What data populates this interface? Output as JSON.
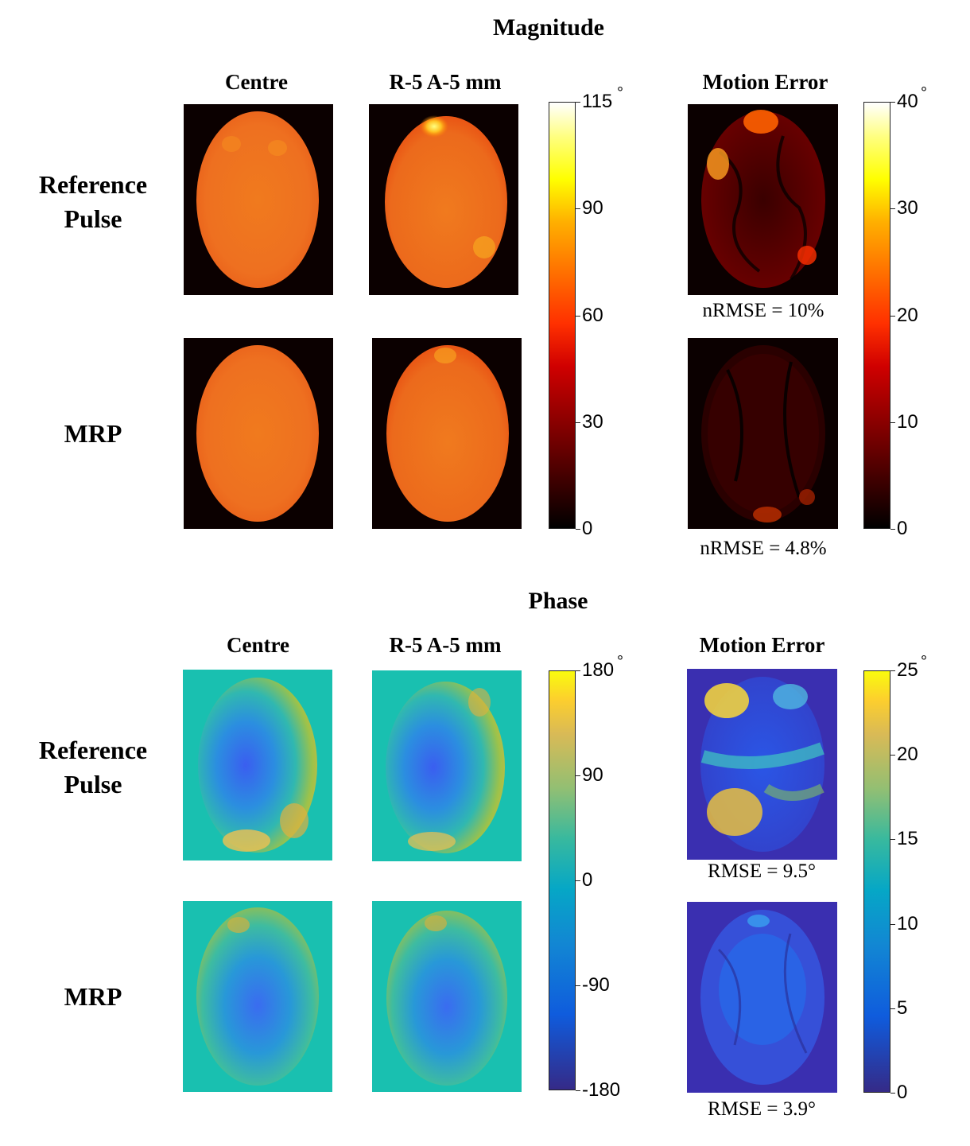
{
  "figure": {
    "magnitude": {
      "title": "Magnitude",
      "col_centre": "Centre",
      "col_shift": "R-5 A-5 mm",
      "col_error": "Motion Error",
      "row_ref_line1": "Reference",
      "row_ref_line2": "Pulse",
      "row_mrp": "MRP",
      "metric_ref": "nRMSE = 10%",
      "metric_mrp": "nRMSE = 4.8%",
      "colorbar_main": {
        "ticks": [
          "115",
          "90",
          "60",
          "30",
          "0"
        ],
        "unit": "°"
      },
      "colorbar_error": {
        "ticks": [
          "40",
          "30",
          "20",
          "10",
          "0"
        ],
        "unit": "°"
      },
      "colors": {
        "background": "#0b0000",
        "brain": "#f07820",
        "hot_spot": "#ffe040"
      }
    },
    "phase": {
      "title": "Phase",
      "col_centre": "Centre",
      "col_shift": "R-5 A-5 mm",
      "col_error": "Motion Error",
      "row_ref_line1": "Reference",
      "row_ref_line2": "Pulse",
      "row_mrp": "MRP",
      "metric_ref": "RMSE = 9.5°",
      "metric_mrp": "RMSE = 3.9°",
      "colorbar_main": {
        "ticks": [
          "180",
          "90",
          "0",
          "-90",
          "-180"
        ],
        "unit": "°"
      },
      "colorbar_error": {
        "ticks": [
          "25",
          "20",
          "15",
          "10",
          "5",
          "0"
        ],
        "unit": "°"
      },
      "colors": {
        "background": "#19c0b0",
        "center": "#3a6cf0",
        "edge": "#a8c840",
        "error_bg": "#3a2fb0"
      }
    }
  }
}
